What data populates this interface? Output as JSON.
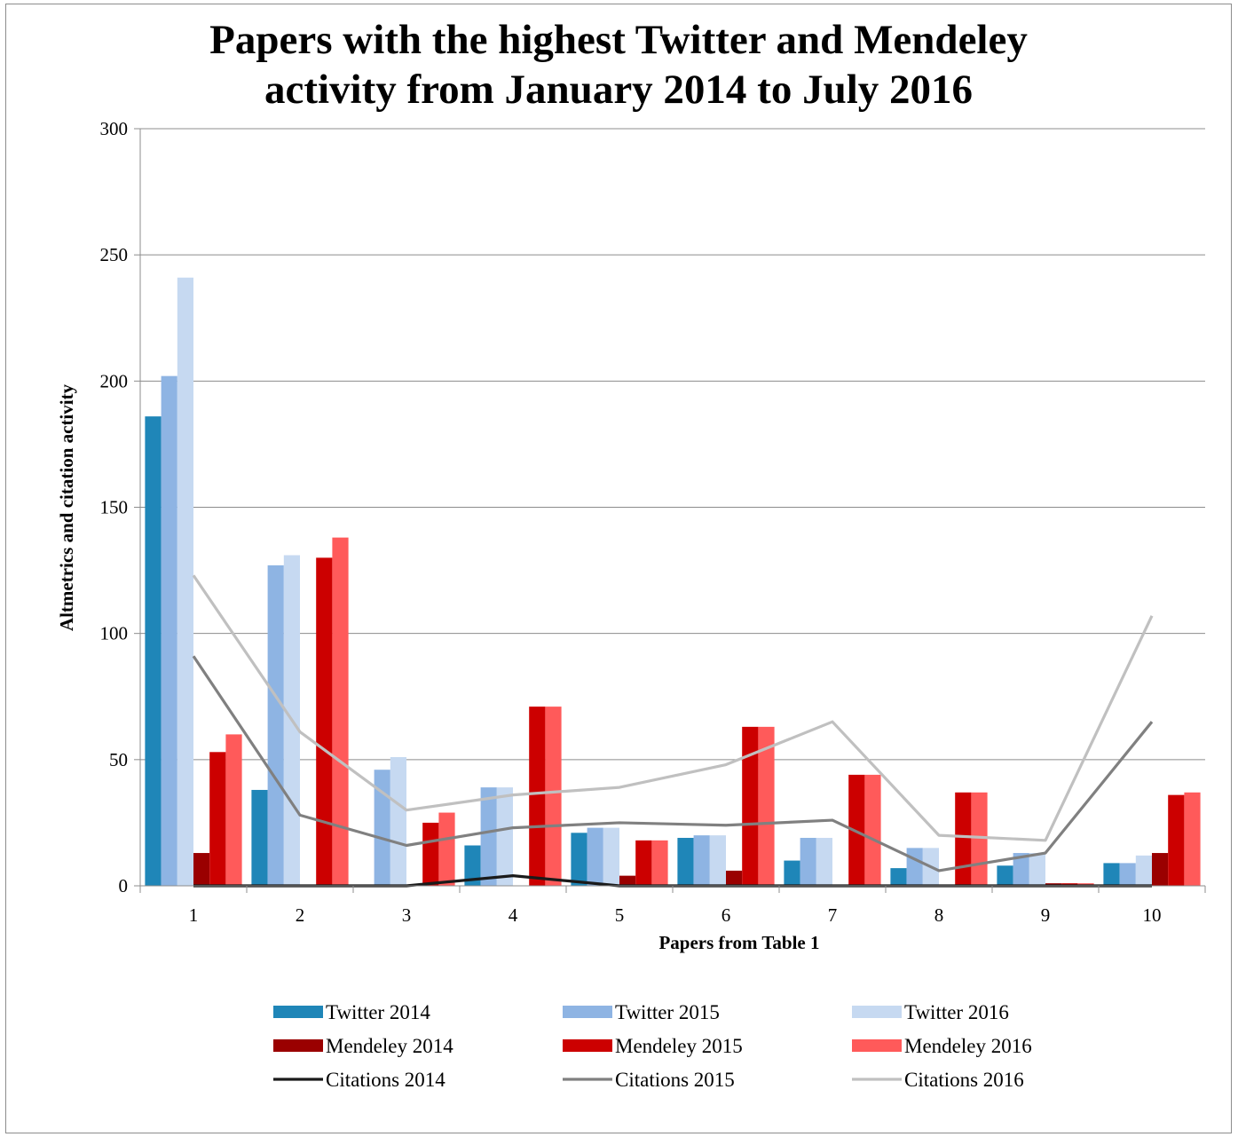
{
  "chart_data": {
    "type": "bar",
    "title_lines": [
      "Papers with the highest Twitter and Mendeley",
      "activity from January 2014 to July 2016"
    ],
    "xlabel": "Papers from Table 1",
    "ylabel": "Altmetrics and citation activity",
    "ylim": [
      0,
      300
    ],
    "yticks": [
      0,
      50,
      100,
      150,
      200,
      250,
      300
    ],
    "grid": true,
    "legend_position": "bottom",
    "categories": [
      "1",
      "2",
      "3",
      "4",
      "5",
      "6",
      "7",
      "8",
      "9",
      "10"
    ],
    "series": [
      {
        "name": "Twitter 2014",
        "kind": "bar",
        "color": "#1f86b8",
        "values": [
          186,
          38,
          0,
          16,
          21,
          19,
          10,
          7,
          8,
          9
        ]
      },
      {
        "name": "Twitter 2015",
        "kind": "bar",
        "color": "#8eb4e3",
        "values": [
          202,
          127,
          46,
          39,
          23,
          20,
          19,
          15,
          13,
          9
        ]
      },
      {
        "name": "Twitter 2016",
        "kind": "bar",
        "color": "#c6d9f1",
        "values": [
          241,
          131,
          51,
          39,
          23,
          20,
          19,
          15,
          13,
          12
        ]
      },
      {
        "name": "Mendeley 2014",
        "kind": "bar",
        "color": "#9a0000",
        "values": [
          13,
          0,
          0,
          0,
          4,
          6,
          0,
          0,
          1,
          13
        ]
      },
      {
        "name": "Mendeley 2015",
        "kind": "bar",
        "color": "#cc0000",
        "values": [
          53,
          130,
          25,
          71,
          18,
          63,
          44,
          37,
          1,
          36
        ]
      },
      {
        "name": "Mendeley 2016",
        "kind": "bar",
        "color": "#ff5a5a",
        "values": [
          60,
          138,
          29,
          71,
          18,
          63,
          44,
          37,
          1,
          37
        ]
      },
      {
        "name": "Citations 2014",
        "kind": "line",
        "color": "#1a1a1a",
        "values": [
          0,
          0,
          0,
          4,
          0,
          0,
          0,
          0,
          0,
          0
        ]
      },
      {
        "name": "Citations 2015",
        "kind": "line",
        "color": "#808080",
        "values": [
          91,
          28,
          16,
          23,
          25,
          24,
          26,
          6,
          13,
          65
        ]
      },
      {
        "name": "Citations 2016",
        "kind": "line",
        "color": "#c0c0c0",
        "values": [
          123,
          61,
          30,
          36,
          39,
          48,
          65,
          20,
          18,
          107
        ]
      }
    ]
  }
}
